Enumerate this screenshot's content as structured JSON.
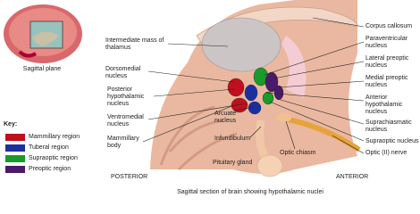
{
  "inset": {
    "label": "Sagittal plane"
  },
  "key": {
    "title": "Key:",
    "items": [
      {
        "label": "Mammillary region",
        "color": "#c0101e"
      },
      {
        "label": "Tuberal region",
        "color": "#1c2fa0"
      },
      {
        "label": "Supraoptic region",
        "color": "#1a9a2a"
      },
      {
        "label": "Preoptic region",
        "color": "#4a1a6a"
      }
    ]
  },
  "left_labels": [
    "Intermediate mass of thalamus",
    "Dorsomedial nucleus",
    "Posterior hypothalamic nucleus",
    "Ventromedial nucleus",
    "Mammillary body"
  ],
  "center_labels": [
    "Arcuate nucleus",
    "Infundibulum",
    "Pituitary gland",
    "Optic chiasm"
  ],
  "right_labels": [
    "Corpus callosum",
    "Paraventricular nucleus",
    "Lateral preoptic nucleus",
    "Medial preoptic nucleus",
    "Anterior hypothalamic nucleus",
    "Suprachiasmatic nucleus",
    "Supraoptic nucleus",
    "Optic (II) nerve"
  ],
  "orientation": {
    "posterior": "POSTERIOR",
    "anterior": "ANTERIOR"
  },
  "caption": "Sagittal section of brain showing hypothalamic nuclei"
}
